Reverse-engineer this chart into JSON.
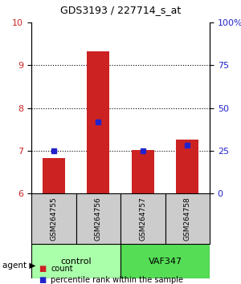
{
  "title": "GDS3193 / 227714_s_at",
  "samples": [
    "GSM264755",
    "GSM264756",
    "GSM264757",
    "GSM264758"
  ],
  "count_values": [
    6.82,
    9.33,
    7.02,
    7.25
  ],
  "percentile_values": [
    25,
    42,
    25,
    28
  ],
  "ylim_left": [
    6,
    10
  ],
  "ylim_right": [
    0,
    100
  ],
  "yticks_left": [
    6,
    7,
    8,
    9,
    10
  ],
  "yticks_right": [
    0,
    25,
    50,
    75,
    100
  ],
  "ytick_labels_right": [
    "0",
    "25",
    "50",
    "75",
    "100%"
  ],
  "bar_color": "#cc2222",
  "dot_color": "#2222cc",
  "groups": [
    {
      "label": "control",
      "samples": [
        0,
        1
      ],
      "color": "#aaffaa"
    },
    {
      "label": "VAF347",
      "samples": [
        2,
        3
      ],
      "color": "#55dd55"
    }
  ],
  "group_label_prefix": "agent",
  "legend_items": [
    {
      "label": "count",
      "color": "#cc2222"
    },
    {
      "label": "percentile rank within the sample",
      "color": "#2222cc"
    }
  ],
  "grid_yticks": [
    7,
    8,
    9
  ],
  "bar_width": 0.5,
  "sample_label_bg": "#cccccc"
}
